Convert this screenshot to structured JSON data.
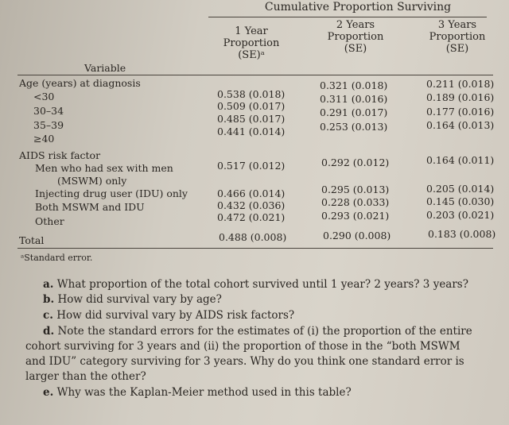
{
  "table": {
    "spanner": "Cumulative Proportion Surviving",
    "column_headers": [
      {
        "line1": "1 Year",
        "line2": "Proportion",
        "line3": "(SE)ᵃ"
      },
      {
        "line1": "2 Years",
        "line2": "Proportion",
        "line3": "(SE)"
      },
      {
        "line1": "3 Years",
        "line2": "Proportion",
        "line3": "(SE)"
      }
    ],
    "variable_header": "Variable",
    "sections": [
      {
        "title": "Age (years) at diagnosis",
        "rows": [
          {
            "label": "<30",
            "y1": "0.538 (0.018)",
            "y2": "0.321 (0.018)",
            "y3": "0.211 (0.018)"
          },
          {
            "label": "30–34",
            "y1": "0.509 (0.017)",
            "y2": "0.311 (0.016)",
            "y3": "0.189 (0.016)"
          },
          {
            "label": "35–39",
            "y1": "0.485 (0.017)",
            "y2": "0.291 (0.017)",
            "y3": "0.177 (0.016)"
          },
          {
            "label": "≥40",
            "y1": "0.441 (0.014)",
            "y2": "0.253 (0.013)",
            "y3": "0.164 (0.013)"
          }
        ]
      },
      {
        "title": "AIDS risk factor",
        "rows": [
          {
            "label": "Men who had sex with men",
            "label2": "(MSWM) only",
            "y1": "0.517 (0.012)",
            "y2": "0.292 (0.012)",
            "y3": "0.164 (0.011)"
          },
          {
            "label": "Injecting drug user (IDU) only",
            "y1": "0.466 (0.014)",
            "y2": "0.295 (0.013)",
            "y3": "0.205 (0.014)"
          },
          {
            "label": "Both MSWM and IDU",
            "y1": "0.432 (0.036)",
            "y2": "0.228 (0.033)",
            "y3": "0.145 (0.030)"
          },
          {
            "label": "Other",
            "y1": "0.472 (0.021)",
            "y2": "0.293 (0.021)",
            "y3": "0.203 (0.021)"
          }
        ]
      }
    ],
    "total": {
      "label": "Total",
      "y1": "0.488 (0.008)",
      "y2": "0.290 (0.008)",
      "y3": "0.183 (0.008)"
    },
    "footnote": "ᵃStandard error."
  },
  "questions": [
    {
      "letter": "a.",
      "text": "What proportion of the total cohort survived until 1 year? 2 years? 3 years?"
    },
    {
      "letter": "b.",
      "text": "How did survival vary by age?"
    },
    {
      "letter": "c.",
      "text": "How did survival vary by AIDS risk factors?"
    },
    {
      "letter": "d.",
      "text": "Note the standard errors for the estimates of (i) the proportion of the entire",
      "cont": [
        "cohort surviving for 3 years and (ii) the proportion of those in the “both MSWM",
        "and IDU” category surviving for 3 years. Why do you think one standard error is",
        "larger than the other?"
      ]
    },
    {
      "letter": "e.",
      "text": "Why was the Kaplan-Meier method used in this table?"
    }
  ]
}
